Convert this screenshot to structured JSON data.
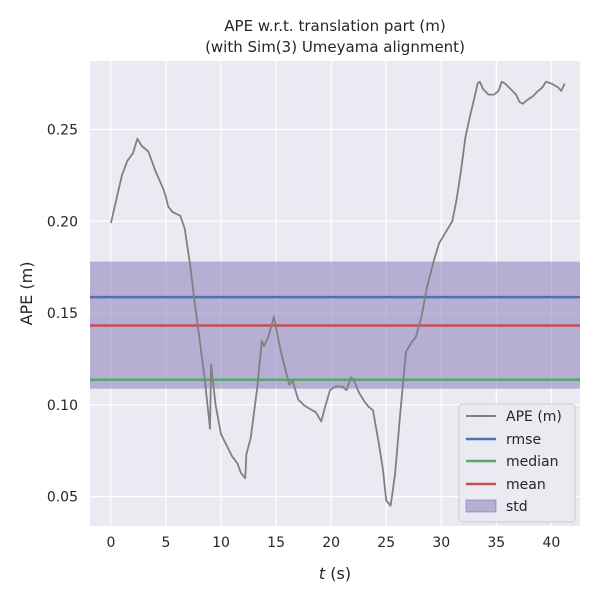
{
  "chart_data": {
    "type": "line",
    "title": [
      "APE w.r.t. translation part (m)",
      "(with Sim(3) Umeyama alignment)"
    ],
    "xlabel_var": "t",
    "xlabel_unit": " (s)",
    "ylabel": "APE (m)",
    "xlim": [
      -1.9,
      42.6
    ],
    "ylim": [
      0.034,
      0.2873
    ],
    "xticks": [
      0,
      5,
      10,
      15,
      20,
      25,
      30,
      35,
      40
    ],
    "yticks": [
      0.05,
      0.1,
      0.15,
      0.2,
      0.25
    ],
    "ytick_labels": [
      "0.05",
      "0.10",
      "0.15",
      "0.20",
      "0.25"
    ],
    "grid": true,
    "legend_position": "lower-right",
    "series": [
      {
        "name": "APE (m)",
        "color": "#808080",
        "points": [
          [
            0.0,
            0.199
          ],
          [
            0.5,
            0.212
          ],
          [
            1.0,
            0.225
          ],
          [
            1.5,
            0.233
          ],
          [
            2.0,
            0.237
          ],
          [
            2.4,
            0.245
          ],
          [
            2.8,
            0.241
          ],
          [
            3.4,
            0.238
          ],
          [
            4.0,
            0.228
          ],
          [
            4.8,
            0.217
          ],
          [
            5.0,
            0.213
          ],
          [
            5.2,
            0.208
          ],
          [
            5.6,
            0.205
          ],
          [
            6.3,
            0.203
          ],
          [
            6.7,
            0.196
          ],
          [
            7.2,
            0.176
          ],
          [
            7.6,
            0.156
          ],
          [
            8.0,
            0.138
          ],
          [
            8.5,
            0.115
          ],
          [
            9.0,
            0.087
          ],
          [
            9.1,
            0.122
          ],
          [
            9.5,
            0.1
          ],
          [
            10.0,
            0.084
          ],
          [
            10.5,
            0.078
          ],
          [
            11.0,
            0.072
          ],
          [
            11.5,
            0.068
          ],
          [
            11.8,
            0.063
          ],
          [
            12.2,
            0.06
          ],
          [
            12.3,
            0.073
          ],
          [
            12.7,
            0.082
          ],
          [
            13.3,
            0.11
          ],
          [
            13.7,
            0.135
          ],
          [
            13.9,
            0.132
          ],
          [
            14.3,
            0.137
          ],
          [
            14.8,
            0.148
          ],
          [
            15.0,
            0.142
          ],
          [
            15.4,
            0.13
          ],
          [
            15.9,
            0.118
          ],
          [
            16.2,
            0.111
          ],
          [
            16.5,
            0.113
          ],
          [
            17.0,
            0.103
          ],
          [
            17.5,
            0.1
          ],
          [
            18.0,
            0.098
          ],
          [
            18.6,
            0.096
          ],
          [
            19.1,
            0.091
          ],
          [
            19.5,
            0.1
          ],
          [
            19.9,
            0.108
          ],
          [
            20.4,
            0.11
          ],
          [
            21.0,
            0.11
          ],
          [
            21.4,
            0.108
          ],
          [
            21.8,
            0.115
          ],
          [
            22.1,
            0.113
          ],
          [
            22.5,
            0.107
          ],
          [
            23.0,
            0.102
          ],
          [
            23.4,
            0.099
          ],
          [
            23.8,
            0.097
          ],
          [
            24.3,
            0.08
          ],
          [
            24.7,
            0.065
          ],
          [
            25.0,
            0.048
          ],
          [
            25.4,
            0.045
          ],
          [
            25.8,
            0.062
          ],
          [
            26.3,
            0.097
          ],
          [
            26.8,
            0.129
          ],
          [
            27.3,
            0.134
          ],
          [
            27.7,
            0.137
          ],
          [
            28.2,
            0.148
          ],
          [
            28.7,
            0.164
          ],
          [
            29.3,
            0.178
          ],
          [
            29.8,
            0.188
          ],
          [
            30.4,
            0.194
          ],
          [
            31.0,
            0.2
          ],
          [
            31.4,
            0.212
          ],
          [
            31.8,
            0.228
          ],
          [
            32.2,
            0.246
          ],
          [
            32.6,
            0.257
          ],
          [
            33.0,
            0.267
          ],
          [
            33.3,
            0.275
          ],
          [
            33.5,
            0.276
          ],
          [
            33.8,
            0.272
          ],
          [
            34.3,
            0.269
          ],
          [
            34.8,
            0.269
          ],
          [
            35.2,
            0.271
          ],
          [
            35.5,
            0.276
          ],
          [
            35.8,
            0.275
          ],
          [
            36.3,
            0.272
          ],
          [
            36.8,
            0.269
          ],
          [
            37.1,
            0.265
          ],
          [
            37.4,
            0.264
          ],
          [
            37.8,
            0.266
          ],
          [
            38.3,
            0.268
          ],
          [
            38.8,
            0.271
          ],
          [
            39.2,
            0.273
          ],
          [
            39.5,
            0.276
          ],
          [
            40.0,
            0.275
          ],
          [
            40.6,
            0.273
          ],
          [
            40.9,
            0.271
          ],
          [
            41.2,
            0.275
          ]
        ]
      },
      {
        "name": "rmse",
        "color": "#4c72b0",
        "value": 0.1587
      },
      {
        "name": "median",
        "color": "#55a868",
        "value": 0.1137
      },
      {
        "name": "mean",
        "color": "#c44e52",
        "value": 0.1432
      },
      {
        "name": "std",
        "color": "#8172b3",
        "range": [
          0.1088,
          0.178
        ]
      }
    ]
  },
  "colors": {
    "plot_background": "#eaeaf2",
    "grid": "#ffffff",
    "text": "#262626"
  }
}
